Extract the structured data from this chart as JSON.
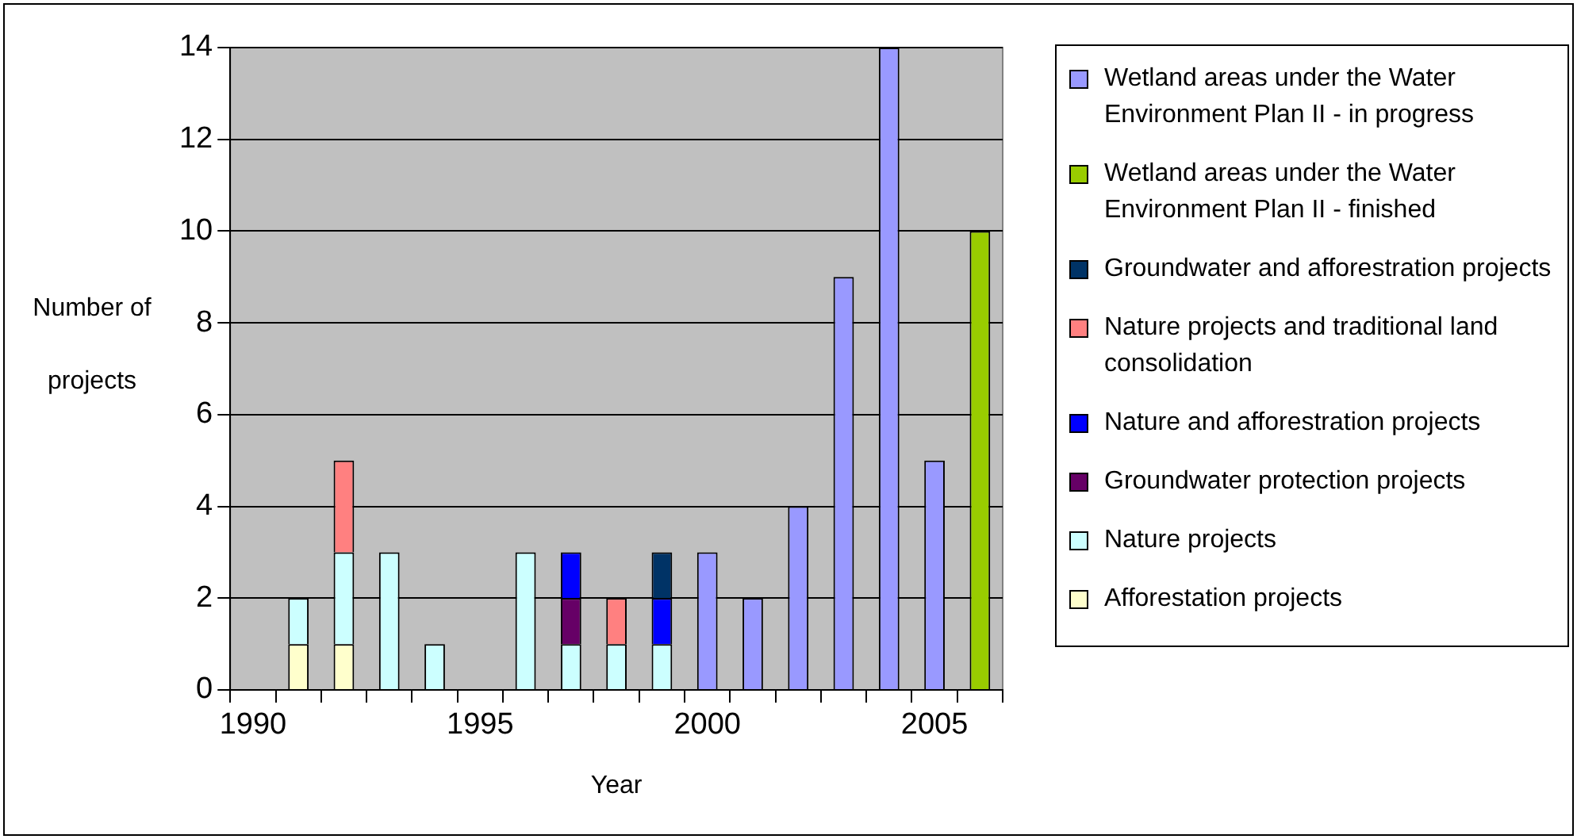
{
  "chart_data": {
    "type": "bar",
    "stacked": true,
    "xlabel": "Year",
    "ylabel": "Number of projects",
    "categories": [
      "1990",
      null,
      null,
      null,
      null,
      "1995",
      null,
      null,
      null,
      null,
      "2000",
      null,
      null,
      null,
      null,
      "2005",
      null
    ],
    "series": [
      {
        "name": "Afforestation projects",
        "color": "#ffffcc",
        "values": [
          null,
          1,
          1,
          null,
          null,
          null,
          null,
          null,
          null,
          null,
          null,
          null,
          null,
          null,
          null,
          null,
          null
        ]
      },
      {
        "name": "Nature projects",
        "color": "#ccffff",
        "values": [
          null,
          1,
          2,
          3,
          1,
          null,
          3,
          1,
          1,
          1,
          null,
          null,
          null,
          null,
          null,
          null,
          null
        ]
      },
      {
        "name": "Groundwater protection projects",
        "color": "#660066",
        "values": [
          null,
          null,
          null,
          null,
          null,
          null,
          null,
          1,
          null,
          null,
          null,
          null,
          null,
          null,
          null,
          null,
          null
        ]
      },
      {
        "name": "Nature and afforestration projects",
        "color": "#0000ff",
        "values": [
          null,
          null,
          null,
          null,
          null,
          null,
          null,
          1,
          null,
          1,
          null,
          null,
          null,
          null,
          null,
          null,
          null
        ]
      },
      {
        "name": "Nature projects and traditional land consolidation",
        "color": "#ff8080",
        "values": [
          null,
          null,
          2,
          null,
          null,
          null,
          null,
          null,
          1,
          null,
          null,
          null,
          null,
          null,
          null,
          null,
          null
        ]
      },
      {
        "name": "Groundwater and afforestration projects",
        "color": "#003366",
        "values": [
          null,
          null,
          null,
          null,
          null,
          null,
          null,
          null,
          null,
          1,
          null,
          null,
          null,
          null,
          null,
          null,
          null
        ]
      },
      {
        "name": "Wetland areas under the Water Environment Plan II - finished",
        "color": "#99cc00",
        "values": [
          null,
          null,
          null,
          null,
          null,
          null,
          null,
          null,
          null,
          null,
          null,
          null,
          null,
          null,
          null,
          null,
          10
        ]
      },
      {
        "name": "Wetland areas under the Water Environment Plan II - in progress",
        "color": "#9999ff",
        "values": [
          null,
          null,
          null,
          null,
          null,
          null,
          null,
          null,
          null,
          null,
          3,
          2,
          4,
          9,
          14,
          5,
          null
        ]
      }
    ],
    "ylim": [
      0,
      14
    ],
    "yticks": [
      0,
      2,
      4,
      6,
      8,
      10,
      12,
      14
    ],
    "grid": "y",
    "legend": "right"
  }
}
